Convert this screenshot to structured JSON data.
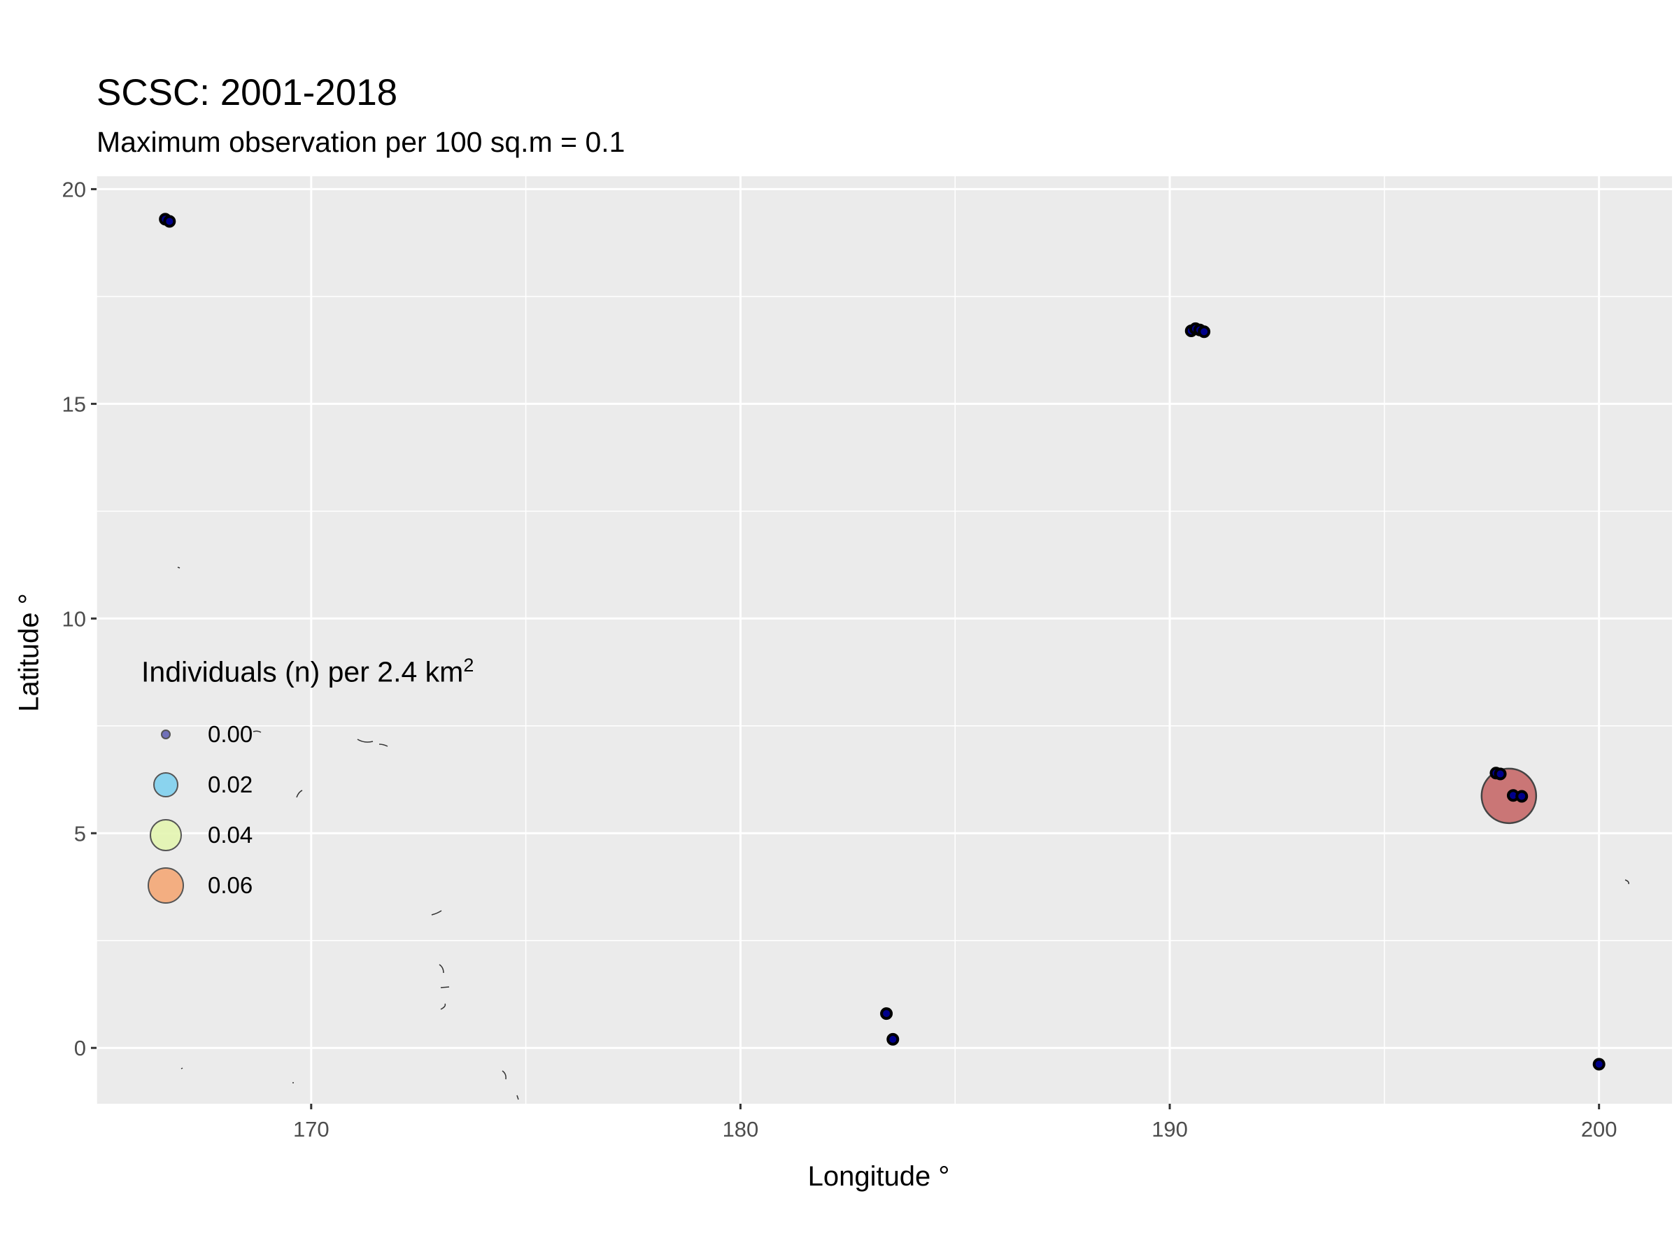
{
  "chart_data": {
    "type": "scatter",
    "title": "SCSC: 2001-2018",
    "subtitle": "Maximum observation per 100 sq.m = 0.1",
    "xlabel": "Longitude °",
    "ylabel": "Latitude °",
    "xlim": [
      165,
      201.7
    ],
    "ylim": [
      -1.3,
      20.3
    ],
    "x_ticks": [
      170,
      180,
      190,
      200
    ],
    "y_ticks": [
      0,
      5,
      10,
      15,
      20
    ],
    "grid": true,
    "legend": {
      "title_main": "Individuals (n) per 2.4 km",
      "title_sup": "2",
      "placement": "left",
      "entries": [
        {
          "label": "0.00",
          "value": 0.0,
          "color": "#5c5cb0"
        },
        {
          "label": "0.02",
          "value": 0.02,
          "color": "#7fd0ee"
        },
        {
          "label": "0.04",
          "value": 0.04,
          "color": "#e3f5b0"
        },
        {
          "label": "0.06",
          "value": 0.06,
          "color": "#f4a775"
        }
      ]
    },
    "points": [
      {
        "x": 166.6,
        "y": 19.3,
        "value": 0.0
      },
      {
        "x": 166.7,
        "y": 19.25,
        "value": 0.0
      },
      {
        "x": 190.5,
        "y": 16.7,
        "value": 0.0
      },
      {
        "x": 190.6,
        "y": 16.75,
        "value": 0.0
      },
      {
        "x": 190.7,
        "y": 16.72,
        "value": 0.0
      },
      {
        "x": 190.8,
        "y": 16.68,
        "value": 0.0
      },
      {
        "x": 197.6,
        "y": 6.4,
        "value": 0.0
      },
      {
        "x": 197.7,
        "y": 6.38,
        "value": 0.0
      },
      {
        "x": 198.0,
        "y": 5.88,
        "value": 0.0
      },
      {
        "x": 198.2,
        "y": 5.86,
        "value": 0.0
      },
      {
        "x": 197.9,
        "y": 5.87,
        "value": 0.07
      },
      {
        "x": 183.4,
        "y": 0.8,
        "value": 0.0
      },
      {
        "x": 183.55,
        "y": 0.2,
        "value": 0.0
      },
      {
        "x": 200.0,
        "y": -0.38,
        "value": 0.0
      }
    ],
    "colors": {
      "panel": "#ebebeb",
      "grid_major": "#ffffff",
      "point_zero_fill": "#00008b",
      "point_large_fill": "#c87070"
    }
  }
}
